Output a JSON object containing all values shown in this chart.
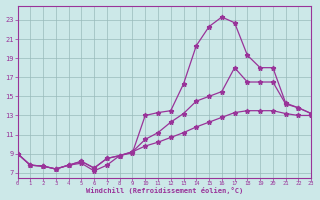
{
  "xlabel": "Windchill (Refroidissement éolien,°C)",
  "bg_color": "#cce8e8",
  "line_color": "#993399",
  "grid_color": "#99bbbb",
  "x_ticks": [
    0,
    1,
    2,
    3,
    4,
    5,
    6,
    7,
    8,
    9,
    10,
    11,
    12,
    13,
    14,
    15,
    16,
    17,
    18,
    19,
    20,
    21,
    22,
    23
  ],
  "y_ticks": [
    7,
    9,
    11,
    13,
    15,
    17,
    19,
    21,
    23
  ],
  "xlim": [
    0,
    23
  ],
  "ylim": [
    6.5,
    24.5
  ],
  "line1_x": [
    0,
    1,
    2,
    3,
    4,
    5,
    6,
    7,
    8,
    9,
    10,
    11,
    12,
    13,
    14,
    15,
    16,
    17,
    18,
    19,
    20,
    21,
    22,
    23
  ],
  "line1_y": [
    9.0,
    7.8,
    7.7,
    7.4,
    7.8,
    8.0,
    7.2,
    7.8,
    8.8,
    9.1,
    13.0,
    13.3,
    13.5,
    16.3,
    20.3,
    22.3,
    23.3,
    22.7,
    19.3,
    18.0,
    18.0,
    14.3,
    13.8,
    13.2
  ],
  "line2_x": [
    0,
    1,
    2,
    3,
    4,
    5,
    6,
    7,
    8,
    9,
    10,
    11,
    12,
    13,
    14,
    15,
    16,
    17,
    18,
    19,
    20,
    21,
    22,
    23
  ],
  "line2_y": [
    9.0,
    7.8,
    7.7,
    7.4,
    7.8,
    8.2,
    7.5,
    8.5,
    8.8,
    9.2,
    10.5,
    11.2,
    12.3,
    13.2,
    14.5,
    15.0,
    15.5,
    18.0,
    16.5,
    16.5,
    16.5,
    14.2,
    13.8,
    13.2
  ],
  "line3_x": [
    0,
    1,
    2,
    3,
    4,
    5,
    6,
    7,
    8,
    9,
    10,
    11,
    12,
    13,
    14,
    15,
    16,
    17,
    18,
    19,
    20,
    21,
    22,
    23
  ],
  "line3_y": [
    9.0,
    7.8,
    7.7,
    7.4,
    7.8,
    8.2,
    7.5,
    8.5,
    8.8,
    9.2,
    9.8,
    10.2,
    10.7,
    11.2,
    11.8,
    12.3,
    12.8,
    13.3,
    13.5,
    13.5,
    13.5,
    13.2,
    13.0,
    13.0
  ]
}
